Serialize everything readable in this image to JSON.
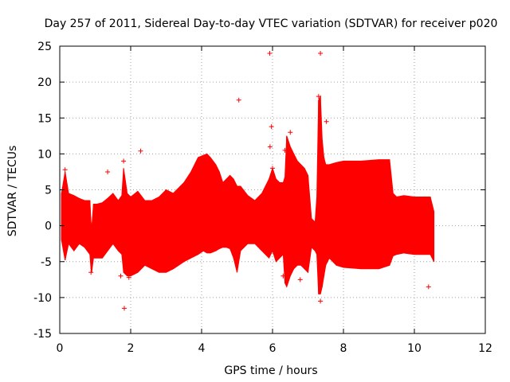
{
  "chart_data": {
    "type": "scatter",
    "title": "Day 257 of 2011, Sidereal Day-to-day VTEC variation (SDTVAR) for receiver p020",
    "xlabel": "GPS time / hours",
    "ylabel": "SDTVAR / TECUs",
    "xlim": [
      0,
      12
    ],
    "ylim": [
      -15,
      25
    ],
    "xticks": [
      "0",
      "2",
      "4",
      "6",
      "8",
      "10",
      "12"
    ],
    "yticks": [
      "-15",
      "-10",
      "-5",
      "0",
      "5",
      "10",
      "15",
      "20",
      "25"
    ],
    "grid": true,
    "legend": "none",
    "series_color": "#ff0000",
    "envelope": {
      "x": [
        0.05,
        0.15,
        0.25,
        0.4,
        0.55,
        0.7,
        0.85,
        0.88,
        0.9,
        0.95,
        1.05,
        1.2,
        1.35,
        1.5,
        1.65,
        1.75,
        1.8,
        1.9,
        2.0,
        2.2,
        2.4,
        2.6,
        2.8,
        3.0,
        3.2,
        3.5,
        3.7,
        3.9,
        4.05,
        4.15,
        4.25,
        4.4,
        4.5,
        4.6,
        4.7,
        4.8,
        4.9,
        5.0,
        5.1,
        5.3,
        5.5,
        5.7,
        5.9,
        6.0,
        6.1,
        6.2,
        6.3,
        6.35,
        6.4,
        6.5,
        6.6,
        6.7,
        6.8,
        6.9,
        7.0,
        7.1,
        7.2,
        7.25,
        7.3,
        7.35,
        7.4,
        7.45,
        7.5,
        7.6,
        7.8,
        8.0,
        8.5,
        9.0,
        9.3,
        9.4,
        9.5,
        9.7,
        10.0,
        10.3,
        10.45,
        10.55
      ],
      "upper": [
        4.5,
        7.5,
        4.5,
        4.2,
        3.8,
        3.5,
        3.5,
        0.5,
        -0.5,
        3.0,
        3.0,
        3.2,
        3.8,
        4.5,
        3.5,
        4.2,
        8.0,
        4.5,
        4.0,
        4.8,
        3.5,
        3.5,
        4.0,
        5.0,
        4.5,
        6.0,
        7.5,
        9.5,
        9.8,
        10.0,
        9.5,
        8.5,
        7.5,
        6.0,
        6.5,
        7.0,
        6.5,
        5.5,
        5.5,
        4.2,
        3.5,
        4.5,
        6.5,
        8.0,
        6.5,
        6.0,
        6.0,
        6.8,
        12.5,
        11.0,
        10.0,
        9.0,
        8.5,
        8.0,
        7.0,
        1.0,
        0.5,
        4.0,
        17.5,
        18.0,
        12.0,
        9.5,
        8.5,
        8.5,
        8.8,
        9.0,
        9.0,
        9.2,
        9.2,
        4.5,
        4.0,
        4.2,
        4.0,
        4.0,
        4.0,
        2.0
      ],
      "lower": [
        -2.0,
        -4.8,
        -2.5,
        -3.5,
        -2.5,
        -3.0,
        -4.0,
        -6.0,
        -6.5,
        -4.5,
        -4.5,
        -4.5,
        -3.5,
        -2.5,
        -3.5,
        -4.0,
        -6.5,
        -7.0,
        -7.0,
        -6.5,
        -5.5,
        -6.0,
        -6.5,
        -6.5,
        -6.0,
        -5.0,
        -4.5,
        -4.0,
        -3.5,
        -3.8,
        -3.8,
        -3.5,
        -3.2,
        -3.0,
        -3.0,
        -3.2,
        -4.5,
        -6.5,
        -3.5,
        -2.5,
        -2.5,
        -3.5,
        -4.5,
        -3.5,
        -5.0,
        -4.5,
        -4.0,
        -8.0,
        -8.5,
        -7.0,
        -6.0,
        -5.5,
        -5.5,
        -6.0,
        -6.5,
        -3.0,
        -3.5,
        -4.0,
        -9.5,
        -9.5,
        -8.5,
        -7.0,
        -5.5,
        -4.5,
        -5.5,
        -5.8,
        -6.0,
        -6.0,
        -5.5,
        -4.2,
        -4.0,
        -3.8,
        -4.0,
        -4.0,
        -4.0,
        -5.0
      ]
    },
    "outliers": [
      {
        "x": 1.82,
        "y": -11.5
      },
      {
        "x": 1.35,
        "y": 7.5
      },
      {
        "x": 2.28,
        "y": 10.4
      },
      {
        "x": 5.92,
        "y": 24.0
      },
      {
        "x": 5.97,
        "y": 13.8
      },
      {
        "x": 5.93,
        "y": 11.0
      },
      {
        "x": 6.35,
        "y": 10.5
      },
      {
        "x": 6.3,
        "y": -7.0
      },
      {
        "x": 6.0,
        "y": 8.0
      },
      {
        "x": 7.35,
        "y": 24.0
      },
      {
        "x": 7.3,
        "y": 18.0
      },
      {
        "x": 7.52,
        "y": 14.5
      },
      {
        "x": 5.05,
        "y": 17.5
      },
      {
        "x": 6.78,
        "y": -7.5
      },
      {
        "x": 7.35,
        "y": -10.5
      },
      {
        "x": 10.4,
        "y": -8.5
      },
      {
        "x": 0.88,
        "y": -6.5
      },
      {
        "x": 1.72,
        "y": -7.0
      },
      {
        "x": 1.95,
        "y": -7.2
      },
      {
        "x": 0.15,
        "y": 7.8
      },
      {
        "x": 1.8,
        "y": 9.0
      },
      {
        "x": 6.5,
        "y": 13.0
      }
    ]
  }
}
